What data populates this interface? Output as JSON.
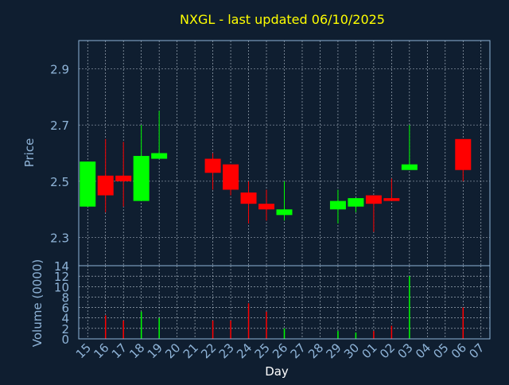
{
  "chart_data": {
    "title": "NXGL - last updated 06/10/2025",
    "type": "candlestick",
    "xlabel": "Day",
    "x_ticks": [
      "15",
      "16",
      "17",
      "18",
      "19",
      "20",
      "21",
      "22",
      "23",
      "24",
      "25",
      "26",
      "27",
      "28",
      "29",
      "30",
      "01",
      "02",
      "03",
      "04",
      "05",
      "06",
      "07"
    ],
    "colors": {
      "background": "#0f1e30",
      "up": "#00ff00",
      "down": "#ff0000",
      "title": "#ffff00",
      "axis_text": "#8fb4d8",
      "grid": "#b8c4d0"
    },
    "price_panel": {
      "ylabel": "Price",
      "ylim": [
        2.2,
        3.0
      ],
      "y_ticks": [
        2.3,
        2.5,
        2.7,
        2.9
      ],
      "y_tick_labels": [
        "2.3",
        "2.5",
        "2.7",
        "2.9"
      ],
      "candles": [
        {
          "day": "15",
          "open": 2.41,
          "close": 2.57,
          "high": 2.57,
          "low": 2.41
        },
        {
          "day": "16",
          "open": 2.52,
          "close": 2.45,
          "high": 2.65,
          "low": 2.39
        },
        {
          "day": "17",
          "open": 2.52,
          "close": 2.5,
          "high": 2.64,
          "low": 2.41
        },
        {
          "day": "18",
          "open": 2.43,
          "close": 2.59,
          "high": 2.7,
          "low": 2.43
        },
        {
          "day": "19",
          "open": 2.58,
          "close": 2.6,
          "high": 2.75,
          "low": 2.58
        },
        {
          "day": "22",
          "open": 2.58,
          "close": 2.53,
          "high": 2.6,
          "low": 2.47
        },
        {
          "day": "23",
          "open": 2.56,
          "close": 2.47,
          "high": 2.56,
          "low": 2.45
        },
        {
          "day": "24",
          "open": 2.46,
          "close": 2.42,
          "high": 2.5,
          "low": 2.35
        },
        {
          "day": "25",
          "open": 2.42,
          "close": 2.4,
          "high": 2.47,
          "low": 2.36
        },
        {
          "day": "26",
          "open": 2.38,
          "close": 2.4,
          "high": 2.5,
          "low": 2.36
        },
        {
          "day": "29",
          "open": 2.4,
          "close": 2.43,
          "high": 2.47,
          "low": 2.35
        },
        {
          "day": "30",
          "open": 2.41,
          "close": 2.44,
          "high": 2.44,
          "low": 2.39
        },
        {
          "day": "01",
          "open": 2.45,
          "close": 2.42,
          "high": 2.45,
          "low": 2.32
        },
        {
          "day": "02",
          "open": 2.44,
          "close": 2.43,
          "high": 2.51,
          "low": 2.43
        },
        {
          "day": "03",
          "open": 2.54,
          "close": 2.56,
          "high": 2.7,
          "low": 2.54
        },
        {
          "day": "06",
          "open": 2.65,
          "close": 2.54,
          "high": 2.65,
          "low": 2.5
        }
      ]
    },
    "volume_panel": {
      "ylabel": "Volume (0000)",
      "ylim": [
        0,
        14
      ],
      "y_ticks": [
        0,
        2,
        4,
        6,
        8,
        10,
        12,
        14
      ],
      "y_tick_labels": [
        "0",
        "2",
        "4",
        "6",
        "8",
        "10",
        "12",
        "14"
      ],
      "bars": [
        {
          "day": "15",
          "value": 0.0,
          "direction": "up"
        },
        {
          "day": "16",
          "value": 4.5,
          "direction": "down"
        },
        {
          "day": "17",
          "value": 3.5,
          "direction": "down"
        },
        {
          "day": "18",
          "value": 5.2,
          "direction": "up"
        },
        {
          "day": "19",
          "value": 4.0,
          "direction": "up"
        },
        {
          "day": "22",
          "value": 3.5,
          "direction": "down"
        },
        {
          "day": "23",
          "value": 3.5,
          "direction": "down"
        },
        {
          "day": "24",
          "value": 6.8,
          "direction": "down"
        },
        {
          "day": "25",
          "value": 5.2,
          "direction": "down"
        },
        {
          "day": "26",
          "value": 2.0,
          "direction": "up"
        },
        {
          "day": "29",
          "value": 1.5,
          "direction": "up"
        },
        {
          "day": "30",
          "value": 1.2,
          "direction": "up"
        },
        {
          "day": "01",
          "value": 1.5,
          "direction": "down"
        },
        {
          "day": "02",
          "value": 2.5,
          "direction": "down"
        },
        {
          "day": "03",
          "value": 12.0,
          "direction": "up"
        },
        {
          "day": "06",
          "value": 6.0,
          "direction": "down"
        }
      ]
    }
  }
}
